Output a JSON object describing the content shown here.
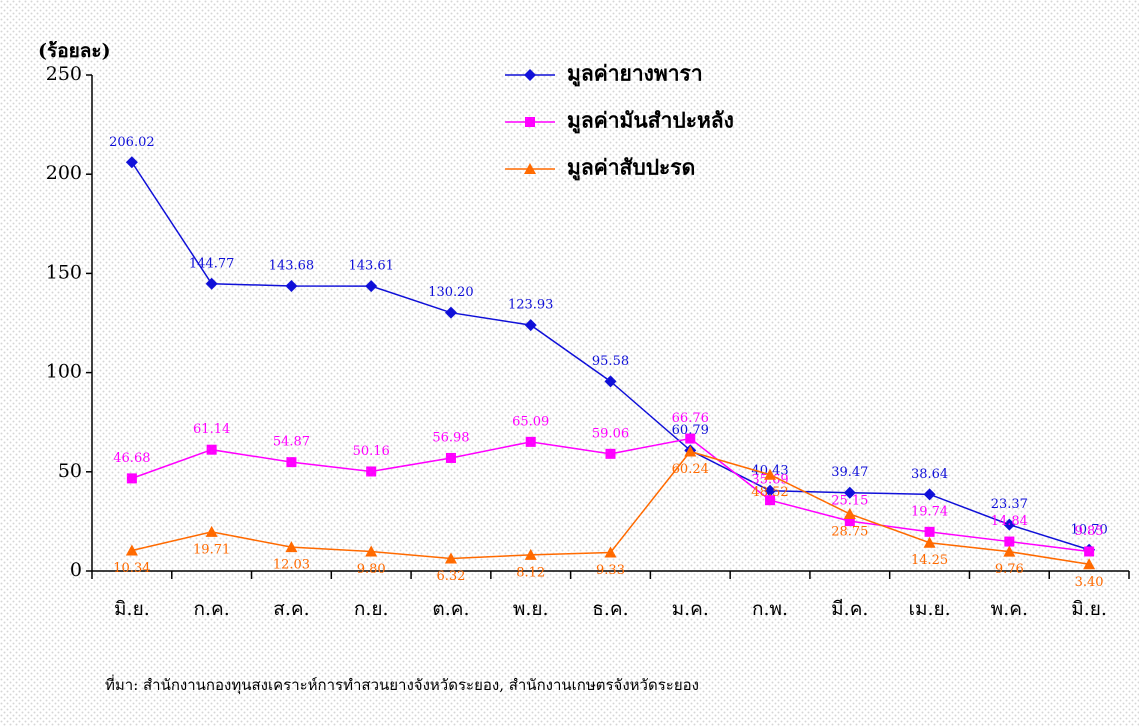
{
  "chart_data": {
    "type": "line",
    "y_label": "(ร้อยละ)",
    "source": "ที่มา: สำนักงานกองทุนสงเคราะห์การทำสวนยางจังหวัดระยอง, สำนักงานเกษตรจังหวัดระยอง",
    "categories": [
      "มิ.ย.",
      "ก.ค.",
      "ส.ค.",
      "ก.ย.",
      "ต.ค.",
      "พ.ย.",
      "ธ.ค.",
      "ม.ค.",
      "ก.พ.",
      "มี.ค.",
      "เม.ย.",
      "พ.ค.",
      "มิ.ย."
    ],
    "series": [
      {
        "name": "มูลค่ายางพารา",
        "color": "#1010d8",
        "marker": "diamond",
        "label_position": "above",
        "values": [
          206.02,
          144.77,
          143.68,
          143.61,
          130.2,
          123.93,
          95.58,
          60.79,
          40.43,
          39.47,
          38.64,
          23.37,
          10.7
        ],
        "value_labels": [
          "206.02",
          "144.77",
          "143.68",
          "143.61",
          "130.20",
          "123.93",
          "95.58",
          "60.79",
          "40.43",
          "39.47",
          "38.64",
          "23.37",
          "10.70"
        ]
      },
      {
        "name": "มูลค่ามันสำปะหลัง",
        "color": "#ff00ff",
        "marker": "square",
        "label_position": "above",
        "values": [
          46.68,
          61.14,
          54.87,
          50.16,
          56.98,
          65.09,
          59.06,
          66.76,
          35.69,
          25.15,
          19.74,
          14.84,
          9.85
        ],
        "value_labels": [
          "46.68",
          "61.14",
          "54.87",
          "50.16",
          "56.98",
          "65.09",
          "59.06",
          "66.76",
          "35.69",
          "25.15",
          "19.74",
          "14.84",
          "9.85"
        ]
      },
      {
        "name": "มูลค่าสับปะรด",
        "color": "#ff6a00",
        "marker": "triangle",
        "label_position": "below",
        "values": [
          10.34,
          19.71,
          12.03,
          9.8,
          6.32,
          8.12,
          9.33,
          60.24,
          48.52,
          28.75,
          14.25,
          9.76,
          3.4
        ],
        "value_labels": [
          "10.34",
          "19.71",
          "12.03",
          "9.80",
          "6.32",
          "8.12",
          "9.33",
          "60.24",
          "48.52",
          "28.75",
          "14.25",
          "9.76",
          "3.40"
        ]
      }
    ],
    "ylim": [
      0,
      250
    ],
    "yticks": [
      0,
      50,
      100,
      150,
      200,
      250
    ],
    "grid": false,
    "legend": "top"
  }
}
